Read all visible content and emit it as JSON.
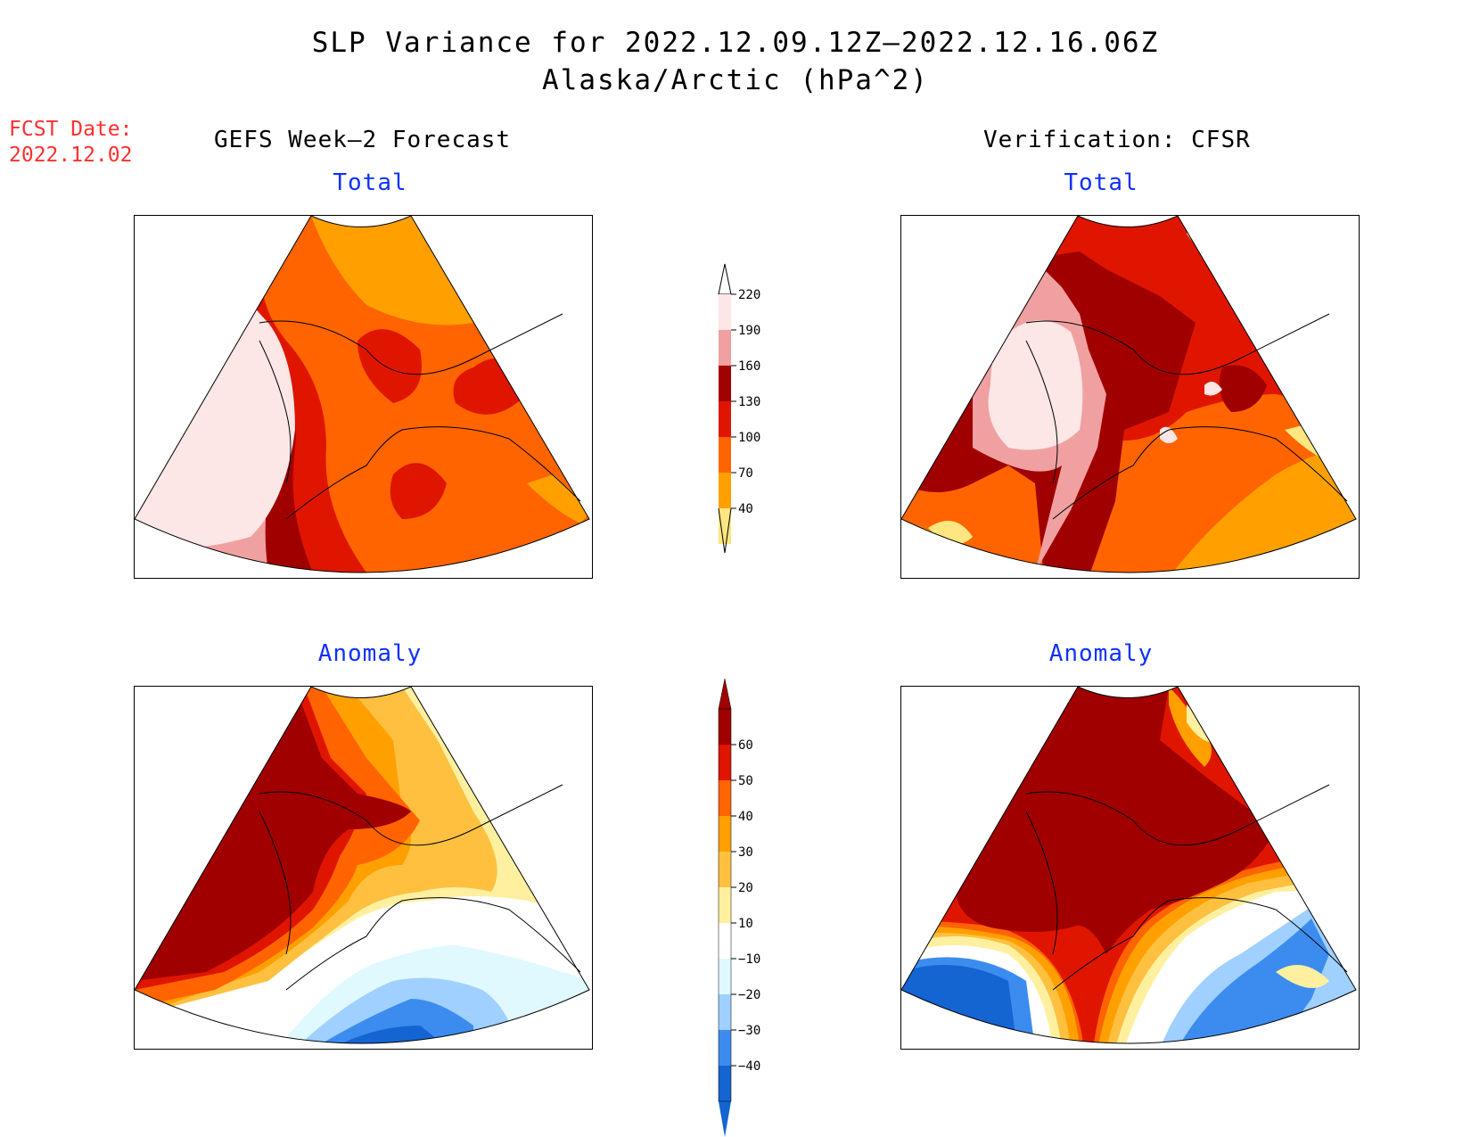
{
  "title_line1": "SLP Variance for 2022.12.09.12Z–2022.12.16.06Z",
  "title_line2": "Alaska/Arctic (hPa^2)",
  "fcst_date_label": "FCST Date:",
  "fcst_date_value": "2022.12.02",
  "left_header": "GEFS Week–2 Forecast",
  "right_header": "Verification: CFSR",
  "panels": {
    "forecast_total": "Total",
    "verification_total": "Total",
    "forecast_anomaly": "Anomaly",
    "verification_anomaly": "Anomaly"
  },
  "total_colorbar": {
    "labels": [
      "220",
      "190",
      "160",
      "130",
      "100",
      "70",
      "40"
    ],
    "colors": [
      "#fce6e6",
      "#f0a0a0",
      "#a00000",
      "#e01500",
      "#ff6400",
      "#ffa000",
      "#ffe680"
    ]
  },
  "anomaly_colorbar": {
    "labels": [
      "60",
      "50",
      "40",
      "30",
      "20",
      "10",
      "−10",
      "−20",
      "−30",
      "−40"
    ],
    "colors": [
      "#a00000",
      "#e01500",
      "#ff6400",
      "#ffa000",
      "#ffc040",
      "#fff0a0",
      "#ffffff",
      "#e0f8ff",
      "#9fd0ff",
      "#3c8cf0",
      "#1464d2"
    ]
  }
}
